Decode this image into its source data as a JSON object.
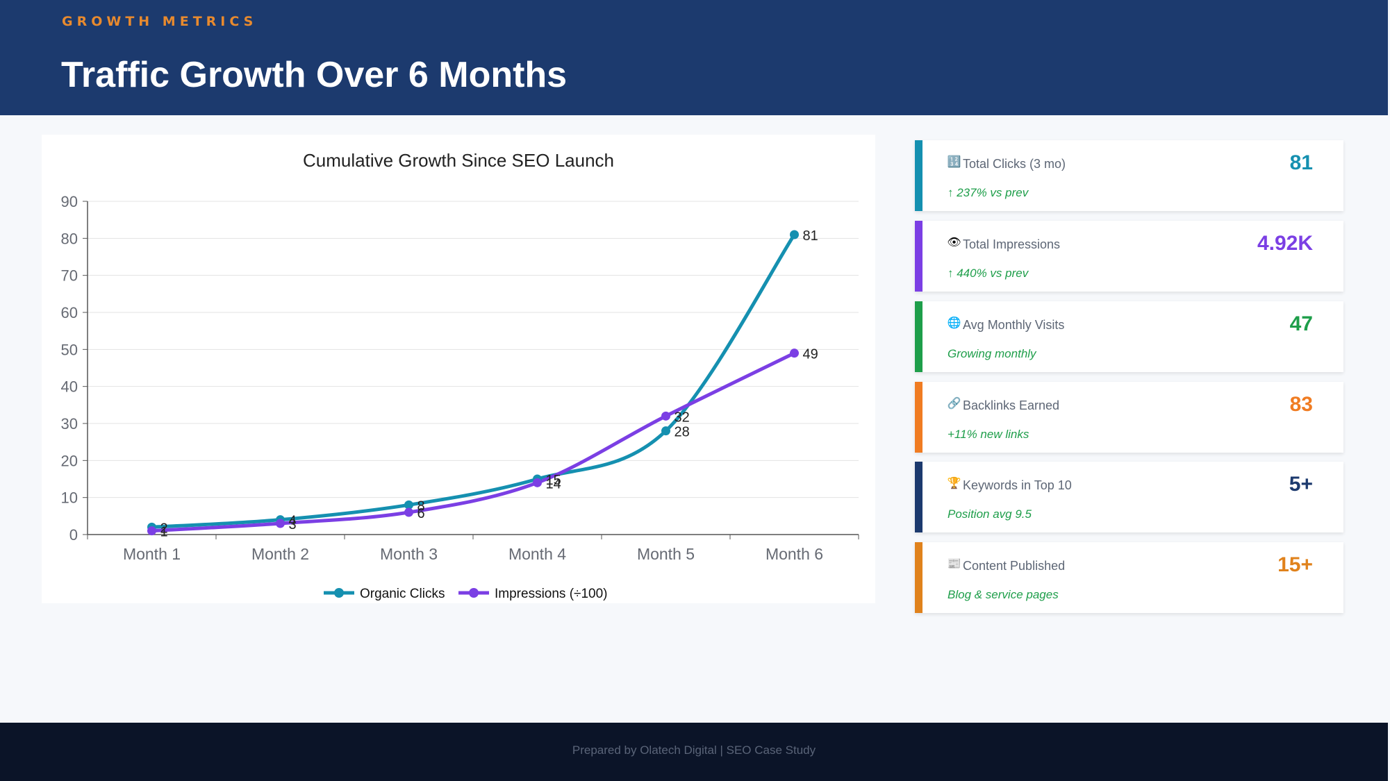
{
  "header": {
    "eyebrow": "GROWTH METRICS",
    "title": "Traffic Growth Over 6 Months"
  },
  "colors": {
    "header_bg": "#1c3a6e",
    "eyebrow": "#e88a2e",
    "organic": "#1590b0",
    "impressions": "#7b3fe4",
    "footer_bg": "#0b1428"
  },
  "chart_data": {
    "type": "line",
    "title": "Cumulative Growth Since SEO Launch",
    "categories": [
      "Month 1",
      "Month 2",
      "Month 3",
      "Month 4",
      "Month 5",
      "Month 6"
    ],
    "series": [
      {
        "name": "Organic Clicks",
        "color": "#1590b0",
        "values": [
          2,
          4,
          8,
          15,
          28,
          81
        ]
      },
      {
        "name": "Impressions (÷100)",
        "color": "#7b3fe4",
        "values": [
          1,
          3,
          6,
          14,
          32,
          49
        ]
      }
    ],
    "ylim": [
      0,
      90
    ],
    "yticks": [
      0,
      10,
      20,
      30,
      40,
      50,
      60,
      70,
      80,
      90
    ],
    "grid": true,
    "legend": "bottom-center",
    "data_labels": true
  },
  "kpis": [
    {
      "icon": "input-numbers-icon",
      "glyph": "🔢",
      "label": "Total Clicks (3 mo)",
      "value": "81",
      "sub": "↑ 237% vs prev",
      "color": "#1590b0"
    },
    {
      "icon": "eye-icon",
      "glyph": "👁",
      "label": "Total Impressions",
      "value": "4.92K",
      "sub": "↑ 440% vs prev",
      "color": "#7b3fe4"
    },
    {
      "icon": "globe-icon",
      "glyph": "🌐",
      "label": "Avg Monthly Visits",
      "value": "47",
      "sub": "Growing monthly",
      "color": "#1e9e4a"
    },
    {
      "icon": "link-icon",
      "glyph": "🔗",
      "label": "Backlinks Earned",
      "value": "83",
      "sub": "+11% new links",
      "color": "#f07c22"
    },
    {
      "icon": "trophy-icon",
      "glyph": "🏆",
      "label": "Keywords in Top 10",
      "value": "5+",
      "sub": "Position avg 9.5",
      "color": "#1c3a6e"
    },
    {
      "icon": "newspaper-icon",
      "glyph": "📰",
      "label": "Content Published",
      "value": "15+",
      "sub": "Blog & service pages",
      "color": "#e0821c"
    }
  ],
  "footer": {
    "text": "Prepared by Olatech Digital  |  SEO Case Study"
  }
}
